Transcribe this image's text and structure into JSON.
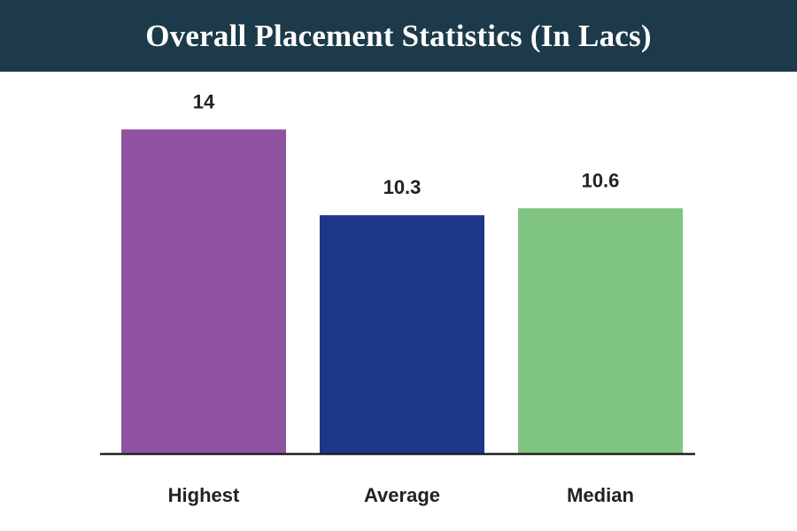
{
  "header": {
    "title": "Overall Placement Statistics (In Lacs)"
  },
  "chart_data": {
    "type": "bar",
    "title": "Overall Placement Statistics (In Lacs)",
    "categories": [
      "Highest",
      "Average",
      "Median"
    ],
    "values": [
      14,
      10.3,
      10.6
    ],
    "value_labels": [
      "14",
      "10.3",
      "10.6"
    ],
    "colors": [
      "#8e52a0",
      "#1d3789",
      "#80c481"
    ],
    "xlabel": "",
    "ylabel": "",
    "ylim": [
      0,
      16.3
    ],
    "grid": false,
    "legend": "none"
  }
}
